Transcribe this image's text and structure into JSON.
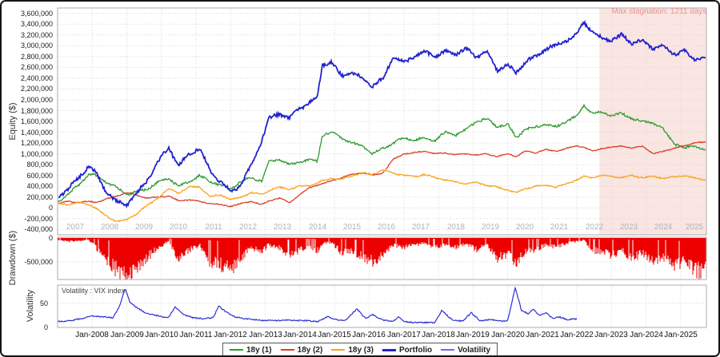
{
  "equity_panel": {
    "ylabel": "Equity ($)",
    "stagnation_text": "Max stagnation: 1211 days",
    "ytick_labels": [
      "3,600,000",
      "3,400,000",
      "3,200,000",
      "3,000,000",
      "2,800,000",
      "2,600,000",
      "2,400,000",
      "2,200,000",
      "2,000,000",
      "1,800,000",
      "1,600,000",
      "1,400,000",
      "1,200,000",
      "1,000,000",
      "800,000",
      "600,000",
      "400,000",
      "200,000",
      "0",
      "-200,000",
      "-400,000"
    ],
    "ytick_values": [
      3600000,
      3400000,
      3200000,
      3000000,
      2800000,
      2600000,
      2400000,
      2200000,
      2000000,
      1800000,
      1600000,
      1400000,
      1200000,
      1000000,
      800000,
      600000,
      400000,
      200000,
      0,
      -200000,
      -400000
    ],
    "year_labels": [
      "2007",
      "2008",
      "2009",
      "2010",
      "2011",
      "2012",
      "2013",
      "2014",
      "2015",
      "2016",
      "2017",
      "2018",
      "2019",
      "2020",
      "2021",
      "2022",
      "2023",
      "2024",
      "2025"
    ]
  },
  "drawdown_panel": {
    "ylabel": "Drawdown ($)",
    "ytick_labels": [
      "0",
      "-500,000"
    ],
    "ytick_values": [
      0,
      -500000
    ]
  },
  "volatility_panel": {
    "ylabel": "Volatility",
    "inline_label": "Volatility : VIX index",
    "ytick_labels": [
      "50",
      "0"
    ],
    "ytick_values": [
      50,
      0
    ]
  },
  "xaxis": {
    "labels": [
      "Jan-2008",
      "Jan-2009",
      "Jan-2010",
      "Jan-2011",
      "Jan-2012",
      "Jan-2013",
      "Jan-2014",
      "Jan-2015",
      "Jan-2016",
      "Jan-2017",
      "Jan-2018",
      "Jan-2019",
      "Jan-2020",
      "Jan-2021",
      "Jan-2022",
      "Jan-2023",
      "Jan-2024",
      "Jan-2025"
    ]
  },
  "legend": [
    {
      "label": "18y (1)",
      "color": "#2c9a2c",
      "weight": 2
    },
    {
      "label": "18y (2)",
      "color": "#d7402a",
      "weight": 2
    },
    {
      "label": "18y (3)",
      "color": "#faa21e",
      "weight": 2
    },
    {
      "label": "Portfolio",
      "color": "#2222cc",
      "weight": 3
    },
    {
      "label": "Volatility",
      "color": "#6b6be8",
      "weight": 2
    }
  ],
  "colors": {
    "grid": "#d9d9d9",
    "panel_border": "#ababab",
    "stagnation_fill": "rgba(244,204,198,0.5)",
    "stagnation_text": "#ef8f85",
    "drawdown": "#ec0000"
  },
  "chart_data": [
    {
      "type": "line",
      "title": "Equity curves",
      "ylabel": "Equity ($)",
      "ylim": [
        -500000,
        3700000
      ],
      "xlim": [
        2007.0,
        2025.74
      ],
      "grid": true,
      "annotations": [
        {
          "type": "region",
          "from": 2022.65,
          "to": 2025.74,
          "label": "Max stagnation: 1211 days"
        }
      ],
      "x": [
        2007.0,
        2007.3,
        2007.6,
        2007.9,
        2008.1,
        2008.4,
        2008.7,
        2009.0,
        2009.3,
        2009.6,
        2009.9,
        2010.2,
        2010.5,
        2010.8,
        2011.1,
        2011.4,
        2011.7,
        2012.0,
        2012.3,
        2012.6,
        2012.9,
        2013.1,
        2013.4,
        2013.7,
        2014.0,
        2014.3,
        2014.5,
        2014.65,
        2014.9,
        2015.2,
        2015.5,
        2015.8,
        2016.1,
        2016.4,
        2016.7,
        2017.0,
        2017.3,
        2017.6,
        2017.9,
        2018.2,
        2018.5,
        2018.8,
        2019.1,
        2019.4,
        2019.7,
        2020.0,
        2020.25,
        2020.5,
        2020.8,
        2021.1,
        2021.4,
        2021.7,
        2022.0,
        2022.2,
        2022.45,
        2022.7,
        2023.0,
        2023.3,
        2023.6,
        2023.9,
        2024.2,
        2024.5,
        2024.8,
        2025.1,
        2025.4,
        2025.74
      ],
      "series": [
        {
          "name": "18y (1)",
          "color": "#2c9a2c",
          "values": [
            100000,
            250000,
            420000,
            620000,
            600000,
            480000,
            380000,
            250000,
            300000,
            350000,
            480000,
            550000,
            400000,
            480000,
            600000,
            480000,
            430000,
            350000,
            500000,
            550000,
            500000,
            850000,
            900000,
            800000,
            850000,
            900000,
            850000,
            1350000,
            1400000,
            1300000,
            1200000,
            1150000,
            1000000,
            1100000,
            1200000,
            1300000,
            1250000,
            1300000,
            1250000,
            1400000,
            1350000,
            1450000,
            1600000,
            1650000,
            1500000,
            1550000,
            1300000,
            1450000,
            1500000,
            1550000,
            1500000,
            1600000,
            1700000,
            1900000,
            1750000,
            1780000,
            1700000,
            1750000,
            1650000,
            1600000,
            1580000,
            1450000,
            1200000,
            1100000,
            1150000,
            1060000
          ]
        },
        {
          "name": "18y (2)",
          "color": "#d7402a",
          "values": [
            80000,
            120000,
            100000,
            120000,
            100000,
            160000,
            220000,
            280000,
            230000,
            180000,
            200000,
            220000,
            130000,
            150000,
            120000,
            80000,
            60000,
            30000,
            80000,
            120000,
            60000,
            130000,
            180000,
            100000,
            250000,
            380000,
            420000,
            450000,
            500000,
            560000,
            620000,
            650000,
            600000,
            650000,
            900000,
            1000000,
            1020000,
            1050000,
            1000000,
            1020000,
            980000,
            1000000,
            980000,
            1000000,
            950000,
            1000000,
            950000,
            1050000,
            1020000,
            1080000,
            1050000,
            1100000,
            1150000,
            1120000,
            1050000,
            1100000,
            1120000,
            1150000,
            1100000,
            1150000,
            1000000,
            1050000,
            1100000,
            1150000,
            1200000,
            1220000
          ]
        },
        {
          "name": "18y (3)",
          "color": "#faa21e",
          "values": [
            80000,
            60000,
            100000,
            60000,
            0,
            -150000,
            -250000,
            -220000,
            -100000,
            50000,
            180000,
            350000,
            280000,
            380000,
            400000,
            200000,
            250000,
            150000,
            200000,
            280000,
            250000,
            320000,
            380000,
            350000,
            400000,
            420000,
            450000,
            500000,
            550000,
            520000,
            600000,
            650000,
            620000,
            700000,
            650000,
            600000,
            580000,
            620000,
            560000,
            520000,
            480000,
            450000,
            470000,
            420000,
            380000,
            330000,
            280000,
            350000,
            400000,
            420000,
            380000,
            450000,
            520000,
            580000,
            560000,
            600000,
            580000,
            560000,
            600000,
            560000,
            580000,
            550000,
            570000,
            600000,
            550000,
            520000
          ]
        },
        {
          "name": "Portfolio",
          "color": "#2222cc",
          "values": [
            180000,
            350000,
            550000,
            780000,
            650000,
            300000,
            120000,
            60000,
            280000,
            520000,
            850000,
            1120000,
            780000,
            1000000,
            1100000,
            700000,
            480000,
            300000,
            420000,
            800000,
            1250000,
            1650000,
            1750000,
            1650000,
            1850000,
            1950000,
            2050000,
            2650000,
            2700000,
            2450000,
            2500000,
            2400000,
            2250000,
            2400000,
            2800000,
            2700000,
            2800000,
            2900000,
            2800000,
            2900000,
            2850000,
            2950000,
            2800000,
            2900000,
            2550000,
            2650000,
            2500000,
            2700000,
            2800000,
            2950000,
            3000000,
            3100000,
            3200000,
            3450000,
            3250000,
            3150000,
            3100000,
            3200000,
            3050000,
            3100000,
            2950000,
            3000000,
            2850000,
            2900000,
            2750000,
            2780000
          ]
        }
      ]
    },
    {
      "type": "area",
      "title": "Drawdown",
      "ylabel": "Drawdown ($)",
      "color": "#ec0000",
      "ylim": [
        -875000,
        0
      ],
      "xlim": [
        2007.0,
        2025.74
      ],
      "x": [
        2007.0,
        2007.3,
        2007.6,
        2007.9,
        2008.1,
        2008.4,
        2008.7,
        2009.0,
        2009.3,
        2009.6,
        2009.9,
        2010.2,
        2010.5,
        2010.8,
        2011.1,
        2011.4,
        2011.7,
        2012.0,
        2012.3,
        2012.6,
        2012.9,
        2013.1,
        2013.4,
        2013.7,
        2014.0,
        2014.3,
        2014.5,
        2014.65,
        2014.9,
        2015.2,
        2015.5,
        2015.8,
        2016.1,
        2016.4,
        2016.7,
        2017.0,
        2017.3,
        2017.6,
        2017.9,
        2018.2,
        2018.5,
        2018.8,
        2019.1,
        2019.4,
        2019.7,
        2020.0,
        2020.25,
        2020.5,
        2020.8,
        2021.1,
        2021.4,
        2021.7,
        2022.0,
        2022.2,
        2022.45,
        2022.7,
        2023.0,
        2023.3,
        2023.6,
        2023.9,
        2024.2,
        2024.5,
        2024.8,
        2025.1,
        2025.4,
        2025.74
      ],
      "values": [
        -40000,
        -80000,
        -60000,
        -50000,
        -200000,
        -450000,
        -650000,
        -830000,
        -600000,
        -400000,
        -200000,
        -80000,
        -450000,
        -250000,
        -150000,
        -480000,
        -550000,
        -650000,
        -400000,
        -200000,
        -300000,
        -150000,
        -200000,
        -350000,
        -250000,
        -200000,
        -280000,
        -120000,
        -100000,
        -300000,
        -280000,
        -380000,
        -480000,
        -350000,
        -150000,
        -200000,
        -150000,
        -120000,
        -200000,
        -150000,
        -200000,
        -120000,
        -250000,
        -150000,
        -420000,
        -350000,
        -500000,
        -300000,
        -250000,
        -150000,
        -200000,
        -120000,
        -80000,
        -50000,
        -250000,
        -300000,
        -350000,
        -280000,
        -400000,
        -350000,
        -450000,
        -400000,
        -550000,
        -500000,
        -700000,
        -650000
      ]
    },
    {
      "type": "line",
      "title": "Volatility",
      "ylabel": "Volatility",
      "label": "Volatility : VIX index",
      "color": "#2d2dd6",
      "ylim": [
        0,
        87
      ],
      "xlim": [
        2007.0,
        2022.0
      ],
      "x": [
        2007.0,
        2007.4,
        2007.8,
        2008.0,
        2008.3,
        2008.6,
        2008.8,
        2008.95,
        2009.1,
        2009.3,
        2009.6,
        2009.9,
        2010.2,
        2010.4,
        2010.6,
        2010.9,
        2011.2,
        2011.5,
        2011.65,
        2011.9,
        2012.1,
        2012.4,
        2012.7,
        2013.0,
        2013.3,
        2013.6,
        2013.9,
        2014.2,
        2014.5,
        2014.8,
        2015.0,
        2015.3,
        2015.65,
        2015.9,
        2016.1,
        2016.4,
        2016.7,
        2016.85,
        2017.0,
        2017.3,
        2017.6,
        2017.9,
        2018.1,
        2018.4,
        2018.7,
        2018.95,
        2019.2,
        2019.5,
        2019.8,
        2020.0,
        2020.15,
        2020.22,
        2020.4,
        2020.6,
        2020.75,
        2020.9,
        2021.1,
        2021.3,
        2021.5,
        2021.7,
        2021.9,
        2022.0
      ],
      "values": [
        12,
        14,
        20,
        24,
        22,
        20,
        45,
        80,
        50,
        40,
        28,
        24,
        20,
        42,
        28,
        20,
        18,
        20,
        44,
        30,
        22,
        18,
        16,
        14,
        14,
        15,
        14,
        14,
        12,
        22,
        17,
        14,
        38,
        18,
        26,
        15,
        13,
        22,
        12,
        10,
        10,
        10,
        35,
        15,
        13,
        30,
        14,
        16,
        13,
        14,
        60,
        82,
        35,
        28,
        38,
        25,
        30,
        19,
        22,
        16,
        18,
        17
      ]
    }
  ]
}
